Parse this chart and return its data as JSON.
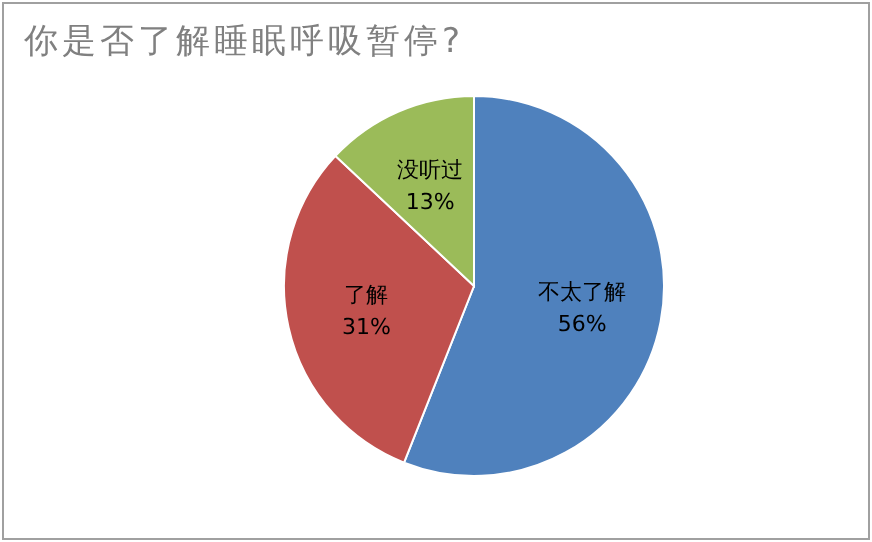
{
  "chart_data": {
    "type": "pie",
    "title": "你是否了解睡眠呼吸暂停?",
    "categories": [
      "不太了解",
      "了解",
      "没听过"
    ],
    "values": [
      56,
      31,
      13
    ],
    "colors": [
      "#4f81bd",
      "#c0504d",
      "#9bbb59"
    ],
    "value_labels": [
      "56%",
      "31%",
      "13%"
    ],
    "legend": false
  }
}
